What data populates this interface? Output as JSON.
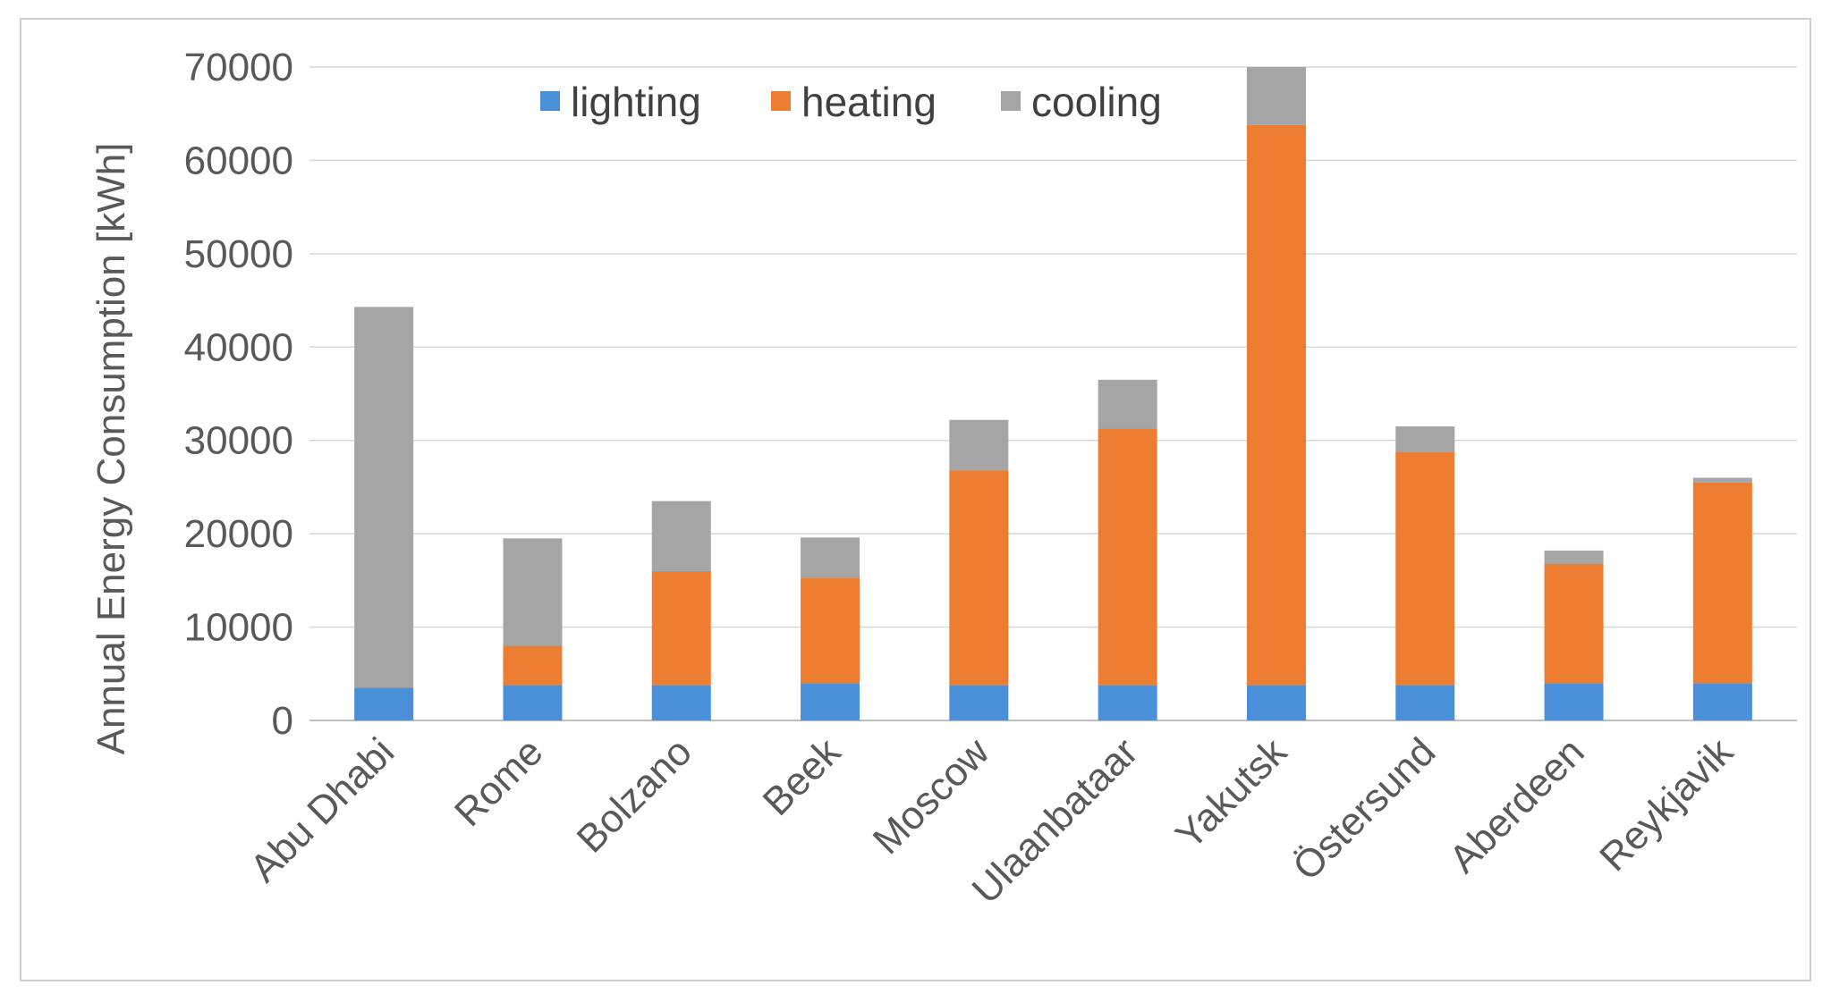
{
  "chart_data": {
    "type": "bar",
    "stacked": true,
    "title": "",
    "xlabel": "",
    "ylabel": "Annual Energy Consumption [kWh]",
    "ylim": [
      0,
      70000
    ],
    "yticks": [
      0,
      10000,
      20000,
      30000,
      40000,
      50000,
      60000,
      70000
    ],
    "grid": true,
    "legend_position": "top",
    "categories": [
      "Abu Dhabi",
      "Rome",
      "Bolzano",
      "Beek",
      "Moscow",
      "Ulaanbataar",
      "Yakutsk",
      "Östersund",
      "Aberdeen",
      "Reykjavik"
    ],
    "series": [
      {
        "name": "lighting",
        "color": "#4a90d9",
        "values": [
          3500,
          3800,
          3800,
          4000,
          3800,
          3800,
          3800,
          3800,
          4000,
          4000
        ]
      },
      {
        "name": "heating",
        "color": "#ed7d31",
        "values": [
          0,
          4200,
          12200,
          11300,
          23000,
          27500,
          60000,
          25000,
          12800,
          21500
        ]
      },
      {
        "name": "cooling",
        "color": "#a5a5a5",
        "values": [
          40800,
          11500,
          7500,
          4300,
          5400,
          5200,
          6200,
          2700,
          1400,
          500
        ]
      }
    ]
  }
}
